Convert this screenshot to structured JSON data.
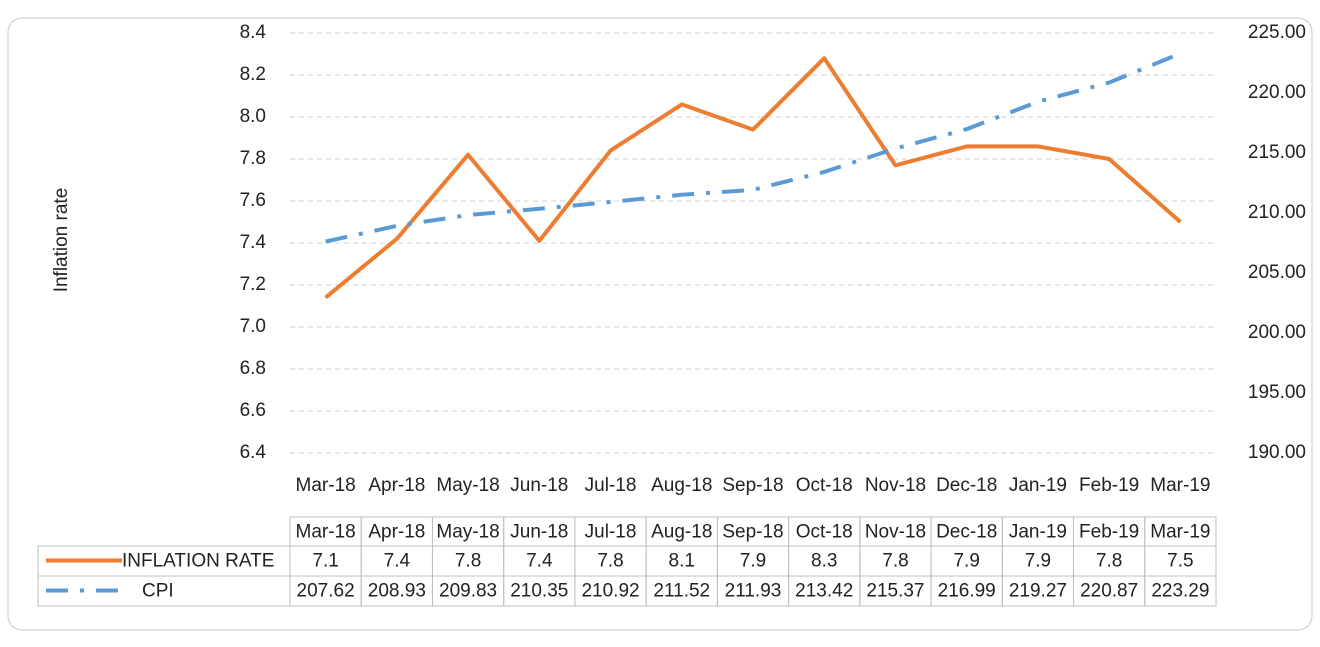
{
  "chart_data": {
    "type": "line",
    "y_label": "Inflation rate",
    "categories": [
      "Mar-18",
      "Apr-18",
      "May-18",
      "Jun-18",
      "Jul-18",
      "Aug-18",
      "Sep-18",
      "Oct-18",
      "Nov-18",
      "Dec-18",
      "Jan-19",
      "Feb-19",
      "Mar-19"
    ],
    "series": [
      {
        "name": "INFLATION RATE",
        "color": "#ed7d31",
        "values": [
          7.14,
          7.42,
          7.82,
          7.41,
          7.84,
          8.06,
          7.94,
          8.28,
          7.77,
          7.86,
          7.86,
          7.8,
          7.5
        ],
        "value_labels": [
          "7.1",
          "7.4",
          "7.8",
          "7.4",
          "7.8",
          "8.1",
          "7.9",
          "8.3",
          "7.8",
          "7.9",
          "7.9",
          "7.8",
          "7.5"
        ]
      },
      {
        "name": "CPI",
        "color": "#5b9bd5",
        "axis": "y2",
        "values": [
          207.62,
          208.93,
          209.83,
          210.35,
          210.92,
          211.52,
          211.93,
          213.42,
          215.37,
          216.99,
          219.27,
          220.87,
          223.29
        ]
      }
    ],
    "ylim": [
      6.4,
      8.4
    ],
    "yticks": [
      6.4,
      6.6,
      6.8,
      {
        "value": 7.0,
        "label": "7.0"
      },
      7.2,
      7.4,
      7.6,
      7.8,
      {
        "value": 8.0,
        "label": "8.0"
      },
      8.2,
      8.4
    ],
    "y2lim": [
      190,
      225
    ],
    "y2ticks": [
      {
        "value": 190,
        "label": "190.00"
      },
      {
        "value": 195,
        "label": "195.00"
      },
      {
        "value": 200,
        "label": "200.00"
      },
      {
        "value": 205,
        "label": "205.00"
      },
      {
        "value": 210,
        "label": "210.00"
      },
      {
        "value": 215,
        "label": "215.00"
      },
      {
        "value": 220,
        "label": "220.00"
      },
      {
        "value": 225,
        "label": "225.00"
      }
    ],
    "grid": true
  }
}
